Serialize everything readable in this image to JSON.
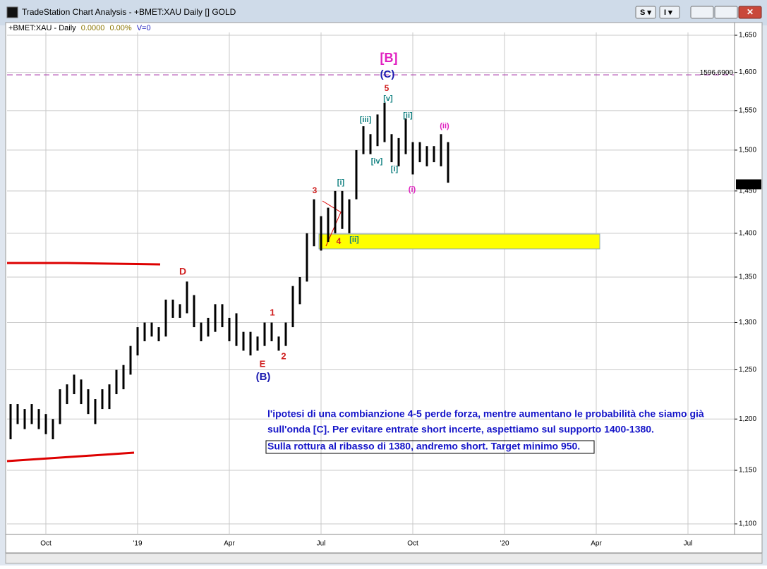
{
  "window": {
    "title": "TradeStation Chart Analysis - +BMET:XAU Daily [] GOLD"
  },
  "chart_data": {
    "type": "bar",
    "legend_text": [
      "+BMET:XAU - Daily",
      "0.0000",
      "0.00%",
      "V=0"
    ],
    "log_scale": true,
    "grid": true,
    "color": "#000000",
    "ylim": [
      1100,
      1650
    ],
    "yticks": [
      {
        "value": 1100,
        "label": "1,100"
      },
      {
        "value": 1150,
        "label": "1,150"
      },
      {
        "value": 1200,
        "label": "1,200"
      },
      {
        "value": 1250,
        "label": "1,250"
      },
      {
        "value": 1300,
        "label": "1,300"
      },
      {
        "value": 1350,
        "label": "1,350"
      },
      {
        "value": 1400,
        "label": "1,400"
      },
      {
        "value": 1450,
        "label": "1,450"
      },
      {
        "value": 1500,
        "label": "1,500"
      },
      {
        "value": 1550,
        "label": "1,550"
      },
      {
        "value": 1600,
        "label": "1,600"
      },
      {
        "value": 1650,
        "label": "1,650"
      }
    ],
    "categories": [
      null,
      null,
      null,
      null,
      null,
      "Oct",
      null,
      null,
      null,
      null,
      null,
      null,
      null,
      null,
      null,
      null,
      null,
      null,
      "'19",
      null,
      null,
      null,
      null,
      null,
      null,
      null,
      null,
      null,
      null,
      null,
      null,
      "Apr",
      null,
      null,
      null,
      null,
      null,
      null,
      null,
      null,
      null,
      null,
      null,
      null,
      "Jul",
      null,
      null,
      null,
      null,
      null,
      null,
      null,
      null,
      null,
      null,
      null,
      null,
      "Oct",
      null,
      null,
      null,
      null,
      null,
      null,
      null,
      null,
      null,
      null,
      null,
      null,
      "'20",
      null,
      null,
      null,
      null,
      null,
      null,
      null,
      null,
      null,
      null,
      null,
      null,
      "Apr",
      null,
      null,
      null,
      null,
      null,
      null,
      null,
      null,
      null,
      null,
      null,
      null,
      "Jul",
      null,
      null,
      null,
      null,
      null,
      null
    ],
    "series": [
      {
        "name": "High",
        "values": [
          1215,
          1215,
          1210,
          1215,
          1210,
          1205,
          1200,
          1230,
          1235,
          1245,
          1240,
          1230,
          1220,
          1230,
          1235,
          1250,
          1255,
          1275,
          1295,
          1300,
          1300,
          1295,
          1325,
          1325,
          1320,
          1345,
          1330,
          1300,
          1305,
          1320,
          1320,
          1305,
          1310,
          1290,
          1290,
          1285,
          1300,
          1300,
          1285,
          1300,
          1340,
          1350,
          1400,
          1440,
          1420,
          1430,
          1450,
          1450,
          1440,
          1500,
          1530,
          1520,
          1545,
          1560,
          1520,
          1515,
          1540,
          1510,
          1510,
          1505,
          1505,
          1520,
          1510,
          null,
          null,
          null,
          null,
          null,
          null,
          null,
          null,
          null,
          null,
          null,
          null,
          null,
          null,
          null,
          null,
          null,
          null,
          null,
          null,
          null,
          null,
          null,
          null,
          null,
          null,
          null,
          null,
          null,
          null,
          null,
          null,
          null,
          null,
          null,
          null,
          null,
          null,
          null,
          null
        ]
      },
      {
        "name": "Low",
        "values": [
          1180,
          1195,
          1190,
          1195,
          1190,
          1185,
          1180,
          1195,
          1215,
          1225,
          1215,
          1205,
          1195,
          1210,
          1210,
          1225,
          1230,
          1245,
          1265,
          1280,
          1285,
          1280,
          1285,
          1305,
          1305,
          1310,
          1295,
          1280,
          1285,
          1290,
          1295,
          1280,
          1275,
          1270,
          1265,
          1270,
          1275,
          1280,
          1270,
          1275,
          1295,
          1320,
          1345,
          1385,
          1380,
          1390,
          1400,
          1405,
          1400,
          1440,
          1495,
          1495,
          1505,
          1510,
          1485,
          1480,
          1495,
          1470,
          1485,
          1480,
          1485,
          1480,
          1460,
          null,
          null,
          null,
          null,
          null,
          null,
          null,
          null,
          null,
          null,
          null,
          null,
          null,
          null,
          null,
          null,
          null,
          null,
          null,
          null,
          null,
          null,
          null,
          null,
          null,
          null,
          null,
          null,
          null,
          null,
          null,
          null,
          null,
          null,
          null,
          null,
          null,
          null,
          null,
          null
        ]
      }
    ],
    "reference_line": {
      "value": 1596.69,
      "label": "1596.6900"
    },
    "last_price": {
      "value": 1458,
      "label": "1,458"
    },
    "annotations": [
      "[B]",
      "(C)",
      "5",
      "[v]",
      "[iii]",
      "[ii]",
      "(ii)",
      "[iv]",
      "[i]",
      "(i)",
      "[i]",
      "3",
      "4",
      "[ii]",
      "D",
      "1",
      "2",
      "E",
      "(B)"
    ],
    "notes": [
      "l'ipotesi di una combianzione 4-5 perde forza, mentre aumentano le probabilità che siamo già",
      "sull'onda [C]. Per evitare entrate short incerte, aspettiamo sul supporto 1400-1380.",
      "Sulla rottura al ribasso di 1380, andremo short. Target minimo 950."
    ]
  }
}
